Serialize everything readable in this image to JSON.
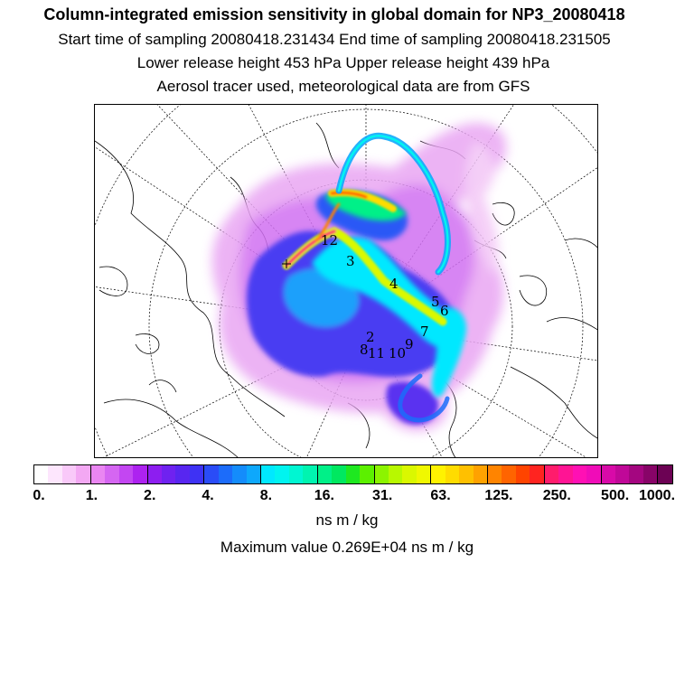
{
  "header": {
    "title": "Column-integrated emission sensitivity in global domain for NP3_20080418",
    "line1": "Start time of sampling 20080418.231434     End time of sampling 20080418.231505",
    "line2": "Lower release height  453 hPa        Upper release height  439 hPa",
    "line3": "Aerosol tracer used, meteorological data are from GFS"
  },
  "map": {
    "trajectory_labels": [
      "2",
      "3",
      "4",
      "5",
      "6",
      "7",
      "8",
      "9",
      "10",
      "11",
      "12"
    ]
  },
  "legend": {
    "ticks": [
      "0.",
      "1.",
      "2.",
      "4.",
      "8.",
      "16.",
      "31.",
      "63.",
      "125.",
      "250.",
      "500.",
      "1000."
    ],
    "units": "ns m / kg",
    "max_value": "Maximum value  0.269E+04 ns m / kg",
    "colors": [
      "#ffffff",
      "#fde6fd",
      "#f9c9f9",
      "#f3a8f3",
      "#ea86f2",
      "#d566f2",
      "#c346f2",
      "#ad22f0",
      "#8d1ef0",
      "#6f22f0",
      "#5826f0",
      "#3e32f4",
      "#2a4cf7",
      "#1c6cfa",
      "#148cfb",
      "#0ea8fc",
      "#00e8ff",
      "#00f4f0",
      "#00f6d2",
      "#00f4b0",
      "#00f088",
      "#00e860",
      "#1ee820",
      "#5cf000",
      "#8cf400",
      "#b8f800",
      "#daf800",
      "#f0f800",
      "#fff200",
      "#ffdc00",
      "#ffc000",
      "#ffa200",
      "#ff8400",
      "#ff6400",
      "#ff4400",
      "#ff2420",
      "#ff1c6c",
      "#ff1494",
      "#ff10b4",
      "#f00cb8",
      "#d80aa8",
      "#c00898",
      "#a40680",
      "#880468",
      "#6c0254"
    ]
  }
}
